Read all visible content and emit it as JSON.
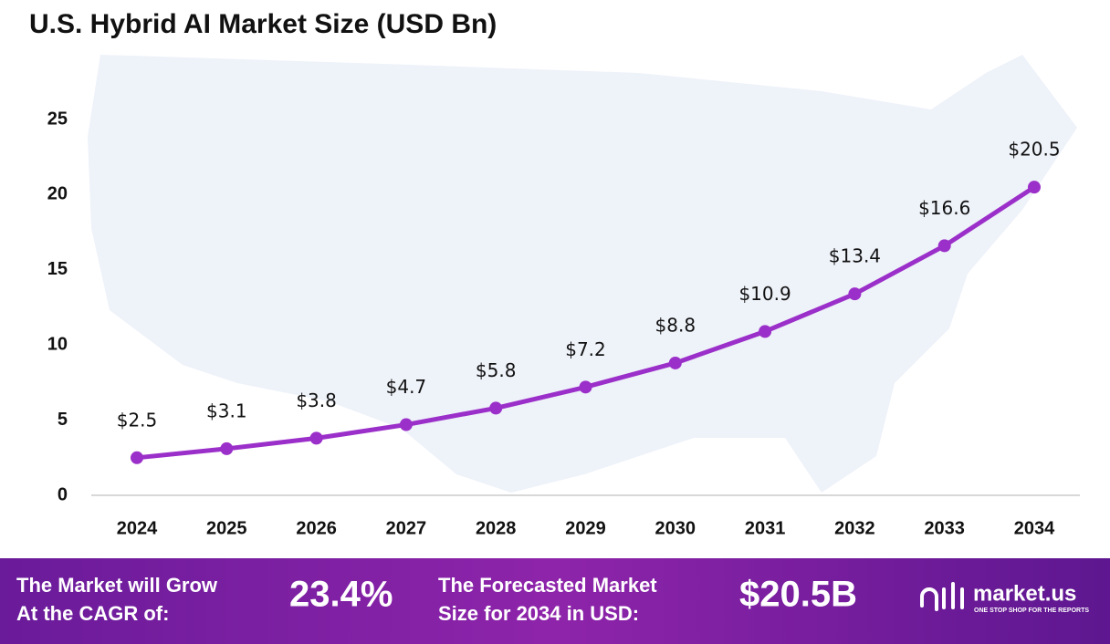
{
  "chart_data": {
    "type": "line",
    "title": "U.S. Hybrid AI Market  Size (USD Bn)",
    "categories": [
      "2024",
      "2025",
      "2026",
      "2027",
      "2028",
      "2029",
      "2030",
      "2031",
      "2032",
      "2033",
      "2034"
    ],
    "values": [
      2.5,
      3.1,
      3.8,
      4.7,
      5.8,
      7.2,
      8.8,
      10.9,
      13.4,
      16.6,
      20.5
    ],
    "value_labels": [
      "$2.5",
      "$3.1",
      "$3.8",
      "$4.7",
      "$5.8",
      "$7.2",
      "$8.8",
      "$10.9",
      "$13.4",
      "$16.6",
      "$20.5"
    ],
    "color": "#9b2fc9",
    "ylim": [
      0,
      25
    ],
    "yticks": [
      0,
      5,
      10,
      15,
      20,
      25
    ],
    "grid": false
  },
  "footer": {
    "cagr_label": [
      "The Market will Grow",
      "At the CAGR of:"
    ],
    "cagr_value": "23.4%",
    "forecast_label": [
      "The Forecasted Market",
      "Size for 2034 in USD:"
    ],
    "forecast_value": "$20.5B",
    "brand": "market.us",
    "tagline": "ONE STOP SHOP FOR THE REPORTS"
  }
}
